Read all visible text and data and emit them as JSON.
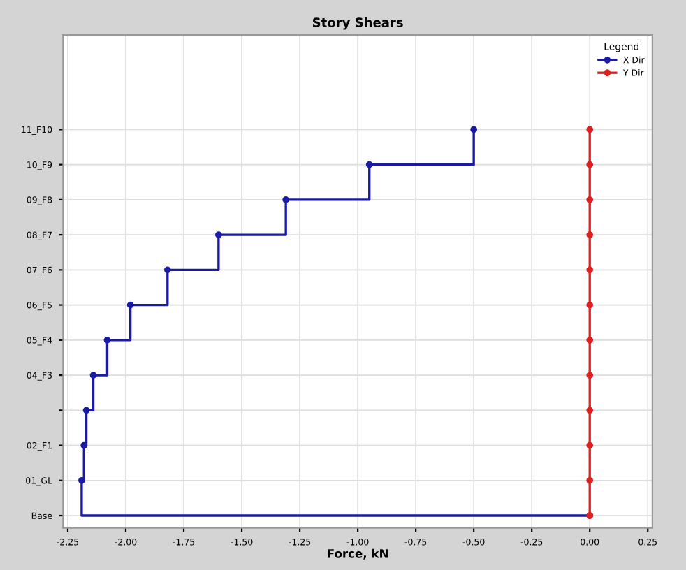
{
  "chart_data": {
    "type": "step",
    "orientation": "horizontal",
    "title": "Story Shears",
    "xlabel": "Force, kN",
    "legend_title": "Legend",
    "xlim": [
      -2.27,
      0.27
    ],
    "xticks": [
      {
        "value": -2.25,
        "label": "-2.25"
      },
      {
        "value": -2,
        "label": "-2.00"
      },
      {
        "value": -1.75,
        "label": "-1.75"
      },
      {
        "value": -1.5,
        "label": "-1.50"
      },
      {
        "value": -1.25,
        "label": "-1.25"
      },
      {
        "value": -1,
        "label": "-1.00"
      },
      {
        "value": -0.75,
        "label": "-0.75"
      },
      {
        "value": -0.5,
        "label": "-0.50"
      },
      {
        "value": -0.25,
        "label": "-0.25"
      },
      {
        "value": 0,
        "label": "0.00"
      },
      {
        "value": 0.25,
        "label": "0.25"
      }
    ],
    "categories": [
      "11_F10",
      "10_F9",
      "09_F8",
      "08_F7",
      "07_F6",
      "06_F5",
      "05_F4",
      "04_F3",
      null,
      "02_F1",
      "01_GL",
      "Base"
    ],
    "grid": true,
    "legend": "top right",
    "marker": "circle",
    "line_style": "solid",
    "series": [
      {
        "name": "X Dir",
        "color": "#1a1aa6",
        "values": [
          -0.5,
          -0.95,
          -1.31,
          -1.6,
          -1.82,
          -1.98,
          -2.08,
          -2.14,
          -2.17,
          -2.18,
          -2.19,
          0
        ]
      },
      {
        "name": "Y Dir",
        "color": "#e02020",
        "values": [
          0,
          0,
          0,
          0,
          0,
          0,
          0,
          0,
          0,
          0,
          0,
          0
        ]
      }
    ]
  }
}
